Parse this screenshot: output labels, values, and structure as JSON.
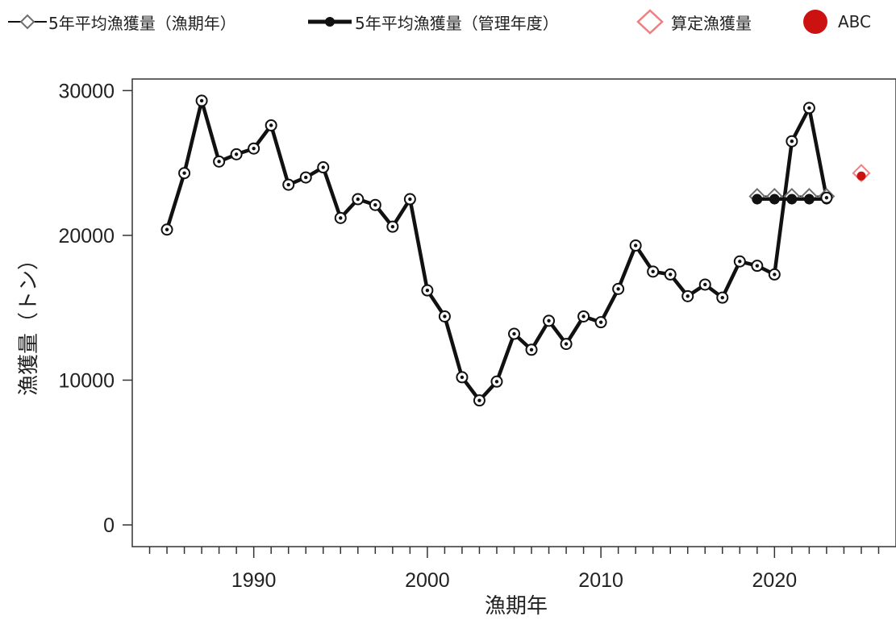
{
  "legend": {
    "items": [
      {
        "label": "5年平均漁獲量（漁期年）",
        "icon": "open-diamond-line-icon"
      },
      {
        "label": "5年平均漁獲量（管理年度）",
        "icon": "filled-circle-line-icon"
      },
      {
        "label": "算定漁獲量",
        "icon": "pink-open-diamond-icon"
      },
      {
        "label": "ABC",
        "icon": "red-filled-circle-icon"
      }
    ]
  },
  "colors": {
    "line": "#111111",
    "avg_fy_marker": "#6e6e6e",
    "calc_marker": "#f08080",
    "abc_marker": "#cc1111",
    "axis": "#333333"
  },
  "chart_data": {
    "type": "line",
    "xlabel": "漁期年",
    "ylabel": "漁獲量（トン）",
    "xlim": [
      1983,
      2027
    ],
    "ylim": [
      -1500,
      30800
    ],
    "xticks": [
      1990,
      2000,
      2010,
      2020
    ],
    "yticks": [
      0,
      10000,
      20000,
      30000
    ],
    "grid": false,
    "legend_position": "top",
    "series": [
      {
        "name": "漁獲量",
        "x": [
          1985,
          1986,
          1987,
          1988,
          1989,
          1990,
          1991,
          1992,
          1993,
          1994,
          1995,
          1996,
          1997,
          1998,
          1999,
          2000,
          2001,
          2002,
          2003,
          2004,
          2005,
          2006,
          2007,
          2008,
          2009,
          2010,
          2011,
          2012,
          2013,
          2014,
          2015,
          2016,
          2017,
          2018,
          2019,
          2020,
          2021,
          2022,
          2023
        ],
        "values": [
          20400,
          24300,
          29300,
          25100,
          25600,
          26000,
          27600,
          23500,
          24000,
          24700,
          21200,
          22500,
          22100,
          20600,
          22500,
          16200,
          14400,
          10200,
          8600,
          9900,
          13200,
          12100,
          14100,
          12500,
          14400,
          14000,
          16300,
          19300,
          17500,
          17300,
          15800,
          16600,
          15700,
          18200,
          17900,
          17300,
          26500,
          28800,
          22600
        ]
      },
      {
        "name": "5年平均漁獲量（漁期年）",
        "x": [
          2019,
          2020,
          2021,
          2022,
          2023
        ],
        "values": [
          22700,
          22700,
          22700,
          22700,
          22700
        ]
      },
      {
        "name": "5年平均漁獲量（管理年度）",
        "x": [
          2019,
          2020,
          2021,
          2022,
          2023
        ],
        "values": [
          22500,
          22500,
          22500,
          22500,
          22500
        ]
      },
      {
        "name": "算定漁獲量",
        "x": [
          2025
        ],
        "values": [
          24300
        ]
      },
      {
        "name": "ABC",
        "x": [
          2025
        ],
        "values": [
          24100
        ]
      }
    ]
  }
}
